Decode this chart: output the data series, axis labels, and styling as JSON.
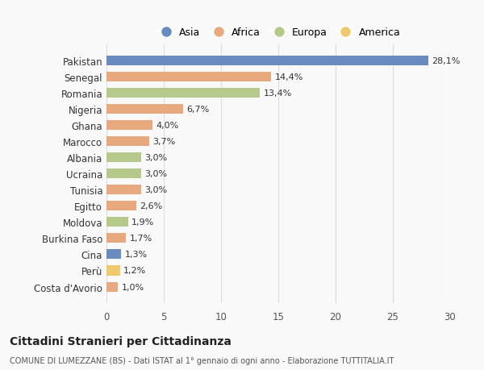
{
  "countries": [
    "Pakistan",
    "Senegal",
    "Romania",
    "Nigeria",
    "Ghana",
    "Marocco",
    "Albania",
    "Ucraina",
    "Tunisia",
    "Egitto",
    "Moldova",
    "Burkina Faso",
    "Cina",
    "Perù",
    "Costa d'Avorio"
  ],
  "values": [
    28.1,
    14.4,
    13.4,
    6.7,
    4.0,
    3.7,
    3.0,
    3.0,
    3.0,
    2.6,
    1.9,
    1.7,
    1.3,
    1.2,
    1.0
  ],
  "labels": [
    "28,1%",
    "14,4%",
    "13,4%",
    "6,7%",
    "4,0%",
    "3,7%",
    "3,0%",
    "3,0%",
    "3,0%",
    "2,6%",
    "1,9%",
    "1,7%",
    "1,3%",
    "1,2%",
    "1,0%"
  ],
  "continents": [
    "Asia",
    "Africa",
    "Europa",
    "Africa",
    "Africa",
    "Africa",
    "Europa",
    "Europa",
    "Africa",
    "Africa",
    "Europa",
    "Africa",
    "Asia",
    "America",
    "Africa"
  ],
  "continent_colors": {
    "Asia": "#6a8bbf",
    "Africa": "#e8a97e",
    "Europa": "#b5c98a",
    "America": "#f0c96e"
  },
  "legend_order": [
    "Asia",
    "Africa",
    "Europa",
    "America"
  ],
  "xlim": [
    0,
    30
  ],
  "xticks": [
    0,
    5,
    10,
    15,
    20,
    25,
    30
  ],
  "title": "Cittadini Stranieri per Cittadinanza",
  "subtitle": "COMUNE DI LUMEZZANE (BS) - Dati ISTAT al 1° gennaio di ogni anno - Elaborazione TUTTITALIA.IT",
  "background_color": "#f9f9f9",
  "grid_color": "#dddddd",
  "bar_height": 0.6
}
